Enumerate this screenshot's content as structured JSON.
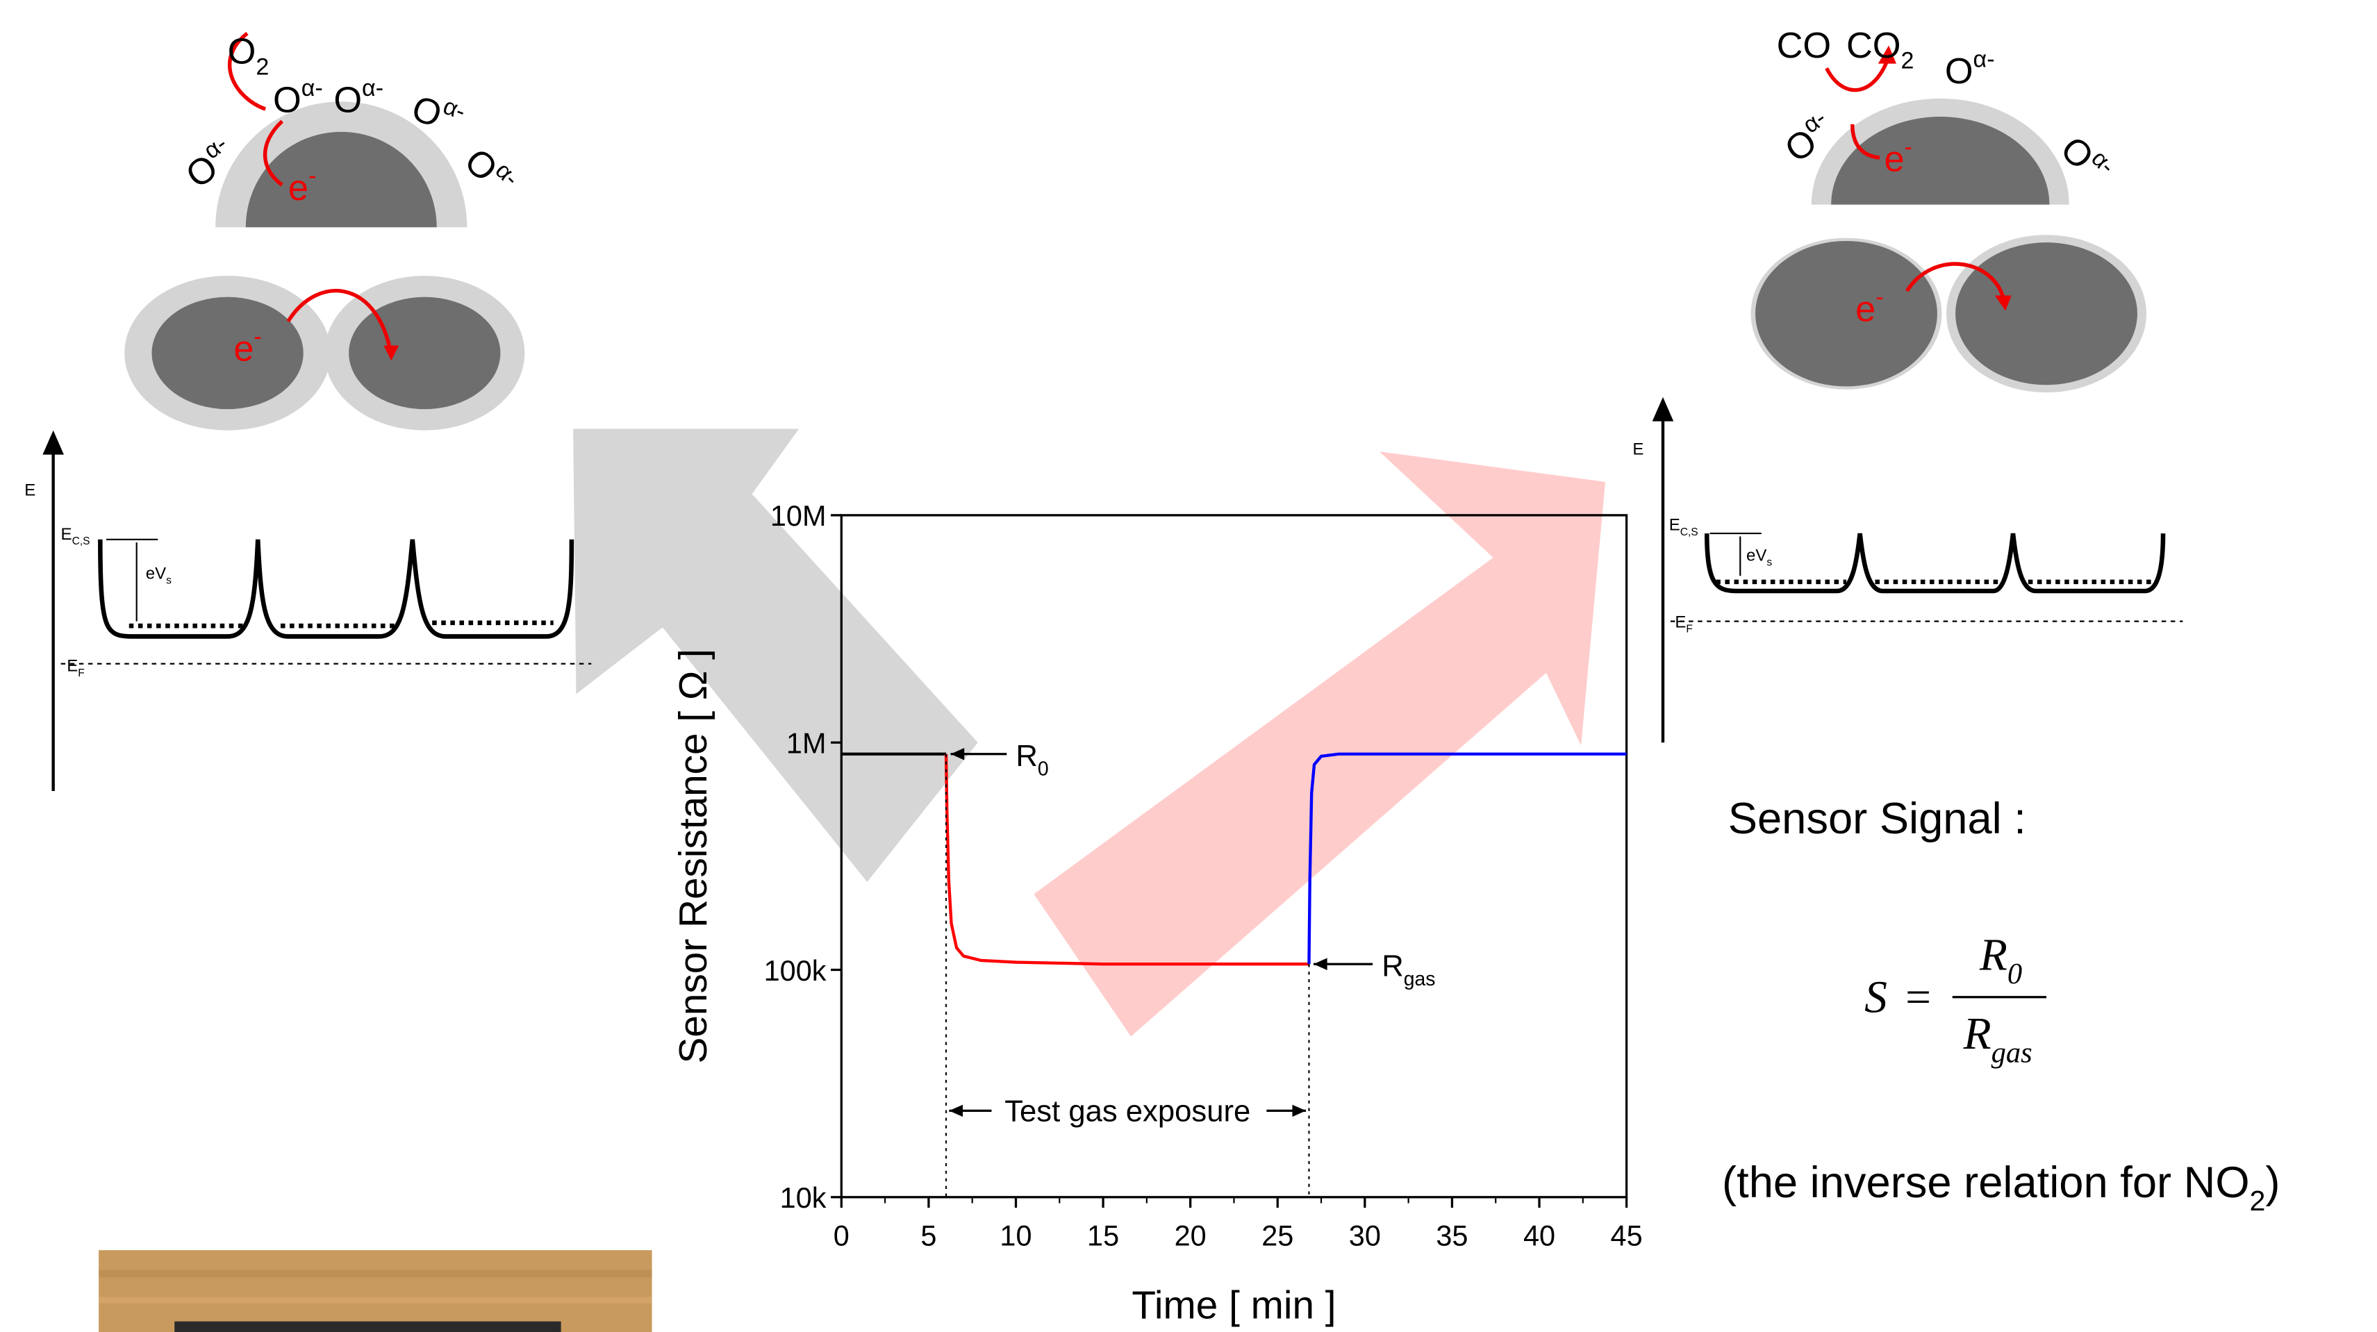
{
  "chart_data": {
    "type": "line",
    "log_y": true,
    "x_label": "Time [ min ]",
    "y_label": "Sensor Resistance [ Ω ]",
    "xlim": [
      0,
      45
    ],
    "xticks": [
      0,
      5,
      10,
      15,
      20,
      25,
      30,
      35,
      40,
      45
    ],
    "ylim": [
      10000,
      10000000
    ],
    "yticks": [
      {
        "value": 10000,
        "label": "10k"
      },
      {
        "value": 100000,
        "label": "100k"
      },
      {
        "value": 1000000,
        "label": "1M"
      },
      {
        "value": 10000000,
        "label": "10M"
      }
    ],
    "series": [
      {
        "color": "#000000",
        "x": [
          0,
          6
        ],
        "values": [
          890000,
          890000
        ]
      },
      {
        "color": "#ff0000",
        "x": [
          6,
          6.05,
          6.15,
          6.3,
          6.6,
          7,
          8,
          10,
          15,
          20,
          26.8
        ],
        "values": [
          890000,
          500000,
          250000,
          160000,
          125000,
          115000,
          110000,
          108000,
          106000,
          106000,
          106000
        ]
      },
      {
        "color": "#0000ff",
        "x": [
          26.8,
          26.85,
          26.95,
          27.1,
          27.5,
          28.5,
          35,
          45
        ],
        "values": [
          106000,
          250000,
          600000,
          800000,
          870000,
          890000,
          890000,
          890000
        ]
      }
    ],
    "annotations": [
      {
        "base": "R",
        "sub": "0"
      },
      {
        "base": "R",
        "sub": "gas"
      },
      {
        "text": "Test gas exposure"
      }
    ]
  },
  "left_diagram": {
    "labels": [
      {
        "base": "O",
        "sub": "2"
      },
      {
        "base": "O",
        "sup": "α-"
      },
      {
        "base": "O",
        "sup": "α-"
      },
      {
        "base": "O",
        "sup": "α-"
      },
      {
        "base": "O",
        "sup": "α-"
      },
      {
        "base": "O",
        "sup": "α-"
      },
      {
        "base": "e",
        "sup": "-"
      },
      {
        "base": "e",
        "sup": "-"
      }
    ],
    "axis": "E",
    "ec": {
      "base": "E",
      "sub": "C,S"
    },
    "evs": {
      "base": "eV",
      "sub": "s"
    },
    "ef": {
      "base": "E",
      "sub": "F"
    }
  },
  "right_diagram": {
    "labels": [
      {
        "base": "CO"
      },
      {
        "base": "CO",
        "sub": "2"
      },
      {
        "base": "O",
        "sup": "α-"
      },
      {
        "base": "O",
        "sup": "α-"
      },
      {
        "base": "O",
        "sup": "α-"
      },
      {
        "base": "e",
        "sup": "-"
      },
      {
        "base": "e",
        "sup": "-"
      }
    ],
    "axis": "E",
    "ec": {
      "base": "E",
      "sub": "C,S"
    },
    "evs": {
      "base": "eV",
      "sub": "s"
    },
    "ef": {
      "base": "E",
      "sub": "F"
    }
  },
  "signal": {
    "heading": "Sensor Signal :",
    "lhs": "S",
    "eq": "=",
    "num": {
      "base": "R",
      "sub": "0"
    },
    "den": {
      "base": "R",
      "sub": "gas"
    },
    "note": {
      "base": "(the inverse relation for NO",
      "sub": "2",
      "tail": ")"
    }
  }
}
